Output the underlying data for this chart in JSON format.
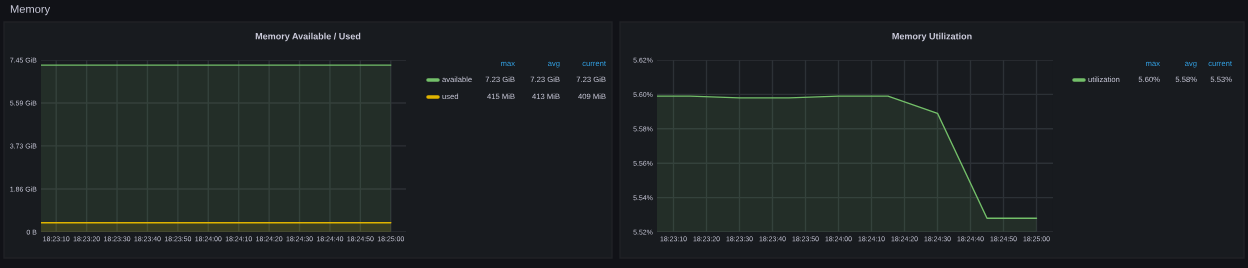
{
  "chart_data": [
    {
      "type": "area",
      "title": "Memory Available / Used",
      "x": [
        18.384722,
        18.3875,
        18.391667,
        18.395833,
        18.4,
        18.404167,
        18.408333,
        18.4125,
        18.416667
      ],
      "series": [
        {
          "name": "available",
          "color": "#73bf69",
          "values": [
            7.23,
            7.23,
            7.23,
            7.23,
            7.23,
            7.23,
            7.23,
            7.23,
            7.23
          ]
        },
        {
          "name": "used",
          "color": "#e0b400",
          "values": [
            0.4,
            0.4,
            0.4,
            0.4,
            0.4,
            0.4,
            0.4,
            0.4,
            0.4
          ]
        }
      ],
      "xlim": [
        18.384722,
        18.418056
      ],
      "xticks": [
        {
          "value": 18.386111,
          "label": "18:23:10"
        },
        {
          "value": 18.388889,
          "label": "18:23:20"
        },
        {
          "value": 18.391667,
          "label": "18:23:30"
        },
        {
          "value": 18.394444,
          "label": "18:23:40"
        },
        {
          "value": 18.397222,
          "label": "18:23:50"
        },
        {
          "value": 18.4,
          "label": "18:24:00"
        },
        {
          "value": 18.402778,
          "label": "18:24:10"
        },
        {
          "value": 18.405556,
          "label": "18:24:20"
        },
        {
          "value": 18.408333,
          "label": "18:24:30"
        },
        {
          "value": 18.411111,
          "label": "18:24:40"
        },
        {
          "value": 18.413889,
          "label": "18:24:50"
        },
        {
          "value": 18.416667,
          "label": "18:25:00"
        }
      ],
      "ylim": [
        0,
        7.45
      ],
      "yticks": [
        {
          "value": 0,
          "label": "0 B"
        },
        {
          "value": 1.86,
          "label": "1.86 GiB"
        },
        {
          "value": 3.73,
          "label": "3.73 GiB"
        },
        {
          "value": 5.59,
          "label": "5.59 GiB"
        },
        {
          "value": 7.45,
          "label": "7.45 GiB"
        }
      ],
      "grid": true,
      "legend": "right",
      "annotations": [
        "Memory",
        "max",
        "avg",
        "current",
        "7.23 GiB",
        "7.23 GiB",
        "7.23 GiB",
        "415 MiB",
        "413 MiB",
        "409 MiB"
      ]
    },
    {
      "type": "area",
      "title": "Memory Utilization",
      "x": [
        18.384722,
        18.3875,
        18.391667,
        18.395833,
        18.4,
        18.404167,
        18.408333,
        18.4125,
        18.416667
      ],
      "series": [
        {
          "name": "utilization",
          "color": "#73bf69",
          "values": [
            5.599,
            5.599,
            5.598,
            5.598,
            5.599,
            5.599,
            5.589,
            5.528,
            5.528
          ]
        }
      ],
      "xlim": [
        18.384722,
        18.418056
      ],
      "xticks": [
        {
          "value": 18.386111,
          "label": "18:23:10"
        },
        {
          "value": 18.388889,
          "label": "18:23:20"
        },
        {
          "value": 18.391667,
          "label": "18:23:30"
        },
        {
          "value": 18.394444,
          "label": "18:23:40"
        },
        {
          "value": 18.397222,
          "label": "18:23:50"
        },
        {
          "value": 18.4,
          "label": "18:24:00"
        },
        {
          "value": 18.402778,
          "label": "18:24:10"
        },
        {
          "value": 18.405556,
          "label": "18:24:20"
        },
        {
          "value": 18.408333,
          "label": "18:24:30"
        },
        {
          "value": 18.411111,
          "label": "18:24:40"
        },
        {
          "value": 18.413889,
          "label": "18:24:50"
        },
        {
          "value": 18.416667,
          "label": "18:25:00"
        }
      ],
      "ylim": [
        5.52,
        5.62
      ],
      "yticks": [
        {
          "value": 5.52,
          "label": "5.52%"
        },
        {
          "value": 5.54,
          "label": "5.54%"
        },
        {
          "value": 5.56,
          "label": "5.56%"
        },
        {
          "value": 5.58,
          "label": "5.58%"
        },
        {
          "value": 5.6,
          "label": "5.60%"
        },
        {
          "value": 5.62,
          "label": "5.62%"
        }
      ],
      "grid": true,
      "legend": "right",
      "annotations": [
        "max",
        "avg",
        "current",
        "5.60%",
        "5.58%",
        "5.53%"
      ]
    }
  ]
}
